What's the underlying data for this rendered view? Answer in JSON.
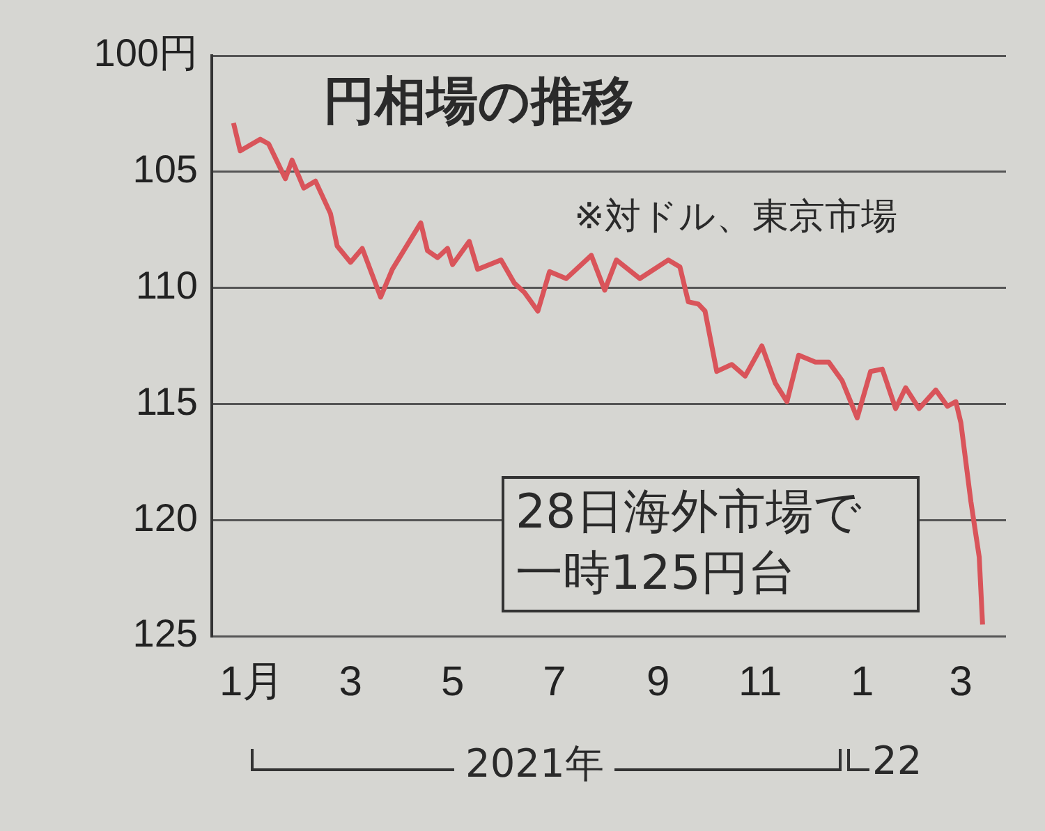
{
  "chart_data": {
    "type": "line",
    "title": "円相場の推移",
    "subtitle": "※対ドル、東京市場",
    "annotations": [
      "28日海外市場で一時125円台",
      "2021年",
      "22"
    ],
    "xlim": [
      "2020-12-22",
      "2022-04-11"
    ],
    "xticks": [
      {
        "value": "2021-01-15",
        "label": "1月"
      },
      {
        "value": "2021-03-15",
        "label": "3"
      },
      {
        "value": "2021-05-15",
        "label": "5"
      },
      {
        "value": "2021-07-15",
        "label": "7"
      },
      {
        "value": "2021-09-15",
        "label": "9"
      },
      {
        "value": "2021-11-15",
        "label": "11"
      },
      {
        "value": "2022-01-15",
        "label": "1"
      },
      {
        "value": "2022-03-15",
        "label": "3"
      }
    ],
    "ylim": [
      125,
      100
    ],
    "yticks": [
      {
        "value": 100,
        "label": "100円"
      },
      105,
      110,
      115,
      120,
      125
    ],
    "grid": "y",
    "legend": false,
    "marker": "none",
    "line_style": "solid",
    "series": [
      {
        "color": "#d9545a",
        "x": [
          "2021-01-04",
          "2021-01-08",
          "2021-01-20",
          "2021-01-25",
          "2021-02-04",
          "2021-02-08",
          "2021-02-15",
          "2021-02-22",
          "2021-03-03",
          "2021-03-07",
          "2021-03-15",
          "2021-03-22",
          "2021-04-02",
          "2021-04-09",
          "2021-04-26",
          "2021-04-30",
          "2021-05-06",
          "2021-05-12",
          "2021-05-15",
          "2021-05-25",
          "2021-05-30",
          "2021-06-13",
          "2021-06-21",
          "2021-06-27",
          "2021-07-05",
          "2021-07-12",
          "2021-07-22",
          "2021-08-06",
          "2021-08-14",
          "2021-08-21",
          "2021-09-04",
          "2021-09-21",
          "2021-09-28",
          "2021-10-03",
          "2021-10-09",
          "2021-10-13",
          "2021-10-20",
          "2021-10-29",
          "2021-11-06",
          "2021-11-16",
          "2021-11-24",
          "2021-12-01",
          "2021-12-08",
          "2021-12-18",
          "2021-12-26",
          "2022-01-03",
          "2022-01-12",
          "2022-01-20",
          "2022-01-27",
          "2022-02-04",
          "2022-02-10",
          "2022-02-18",
          "2022-02-28",
          "2022-03-07",
          "2022-03-12",
          "2022-03-15",
          "2022-03-21",
          "2022-03-26",
          "2022-03-28"
        ],
        "values": [
          102.9,
          104.1,
          103.6,
          103.8,
          105.3,
          104.5,
          105.7,
          105.4,
          106.8,
          108.2,
          108.9,
          108.3,
          110.4,
          109.2,
          107.2,
          108.4,
          108.7,
          108.3,
          109.0,
          108.0,
          109.2,
          108.8,
          109.8,
          110.2,
          111.0,
          109.3,
          109.6,
          108.6,
          110.1,
          108.8,
          109.6,
          108.8,
          109.1,
          110.6,
          110.7,
          111.0,
          113.6,
          113.3,
          113.8,
          112.5,
          114.1,
          114.9,
          112.9,
          113.2,
          113.2,
          114.0,
          115.6,
          113.6,
          113.5,
          115.2,
          114.3,
          115.2,
          114.4,
          115.1,
          114.9,
          115.8,
          119.2,
          121.6,
          124.5
        ]
      }
    ]
  }
}
